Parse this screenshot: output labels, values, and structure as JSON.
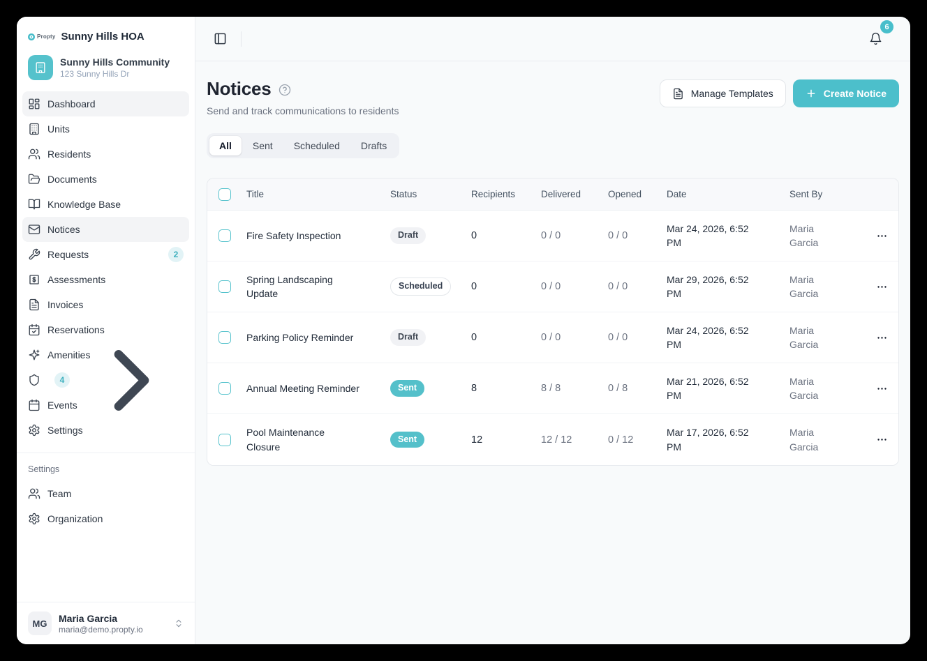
{
  "app": {
    "brand": "Propty",
    "org_name": "Sunny Hills HOA",
    "community": {
      "name": "Sunny Hills Community",
      "address": "123 Sunny Hills Dr"
    },
    "colors": {
      "accent": "#4CBFCB",
      "badge_bg": "#E2F3F6",
      "badge_text": "#3AAFBD"
    }
  },
  "sidebar": {
    "nav": [
      {
        "label": "Dashboard",
        "icon": "dashboard",
        "highlight": true
      },
      {
        "label": "Units",
        "icon": "building"
      },
      {
        "label": "Residents",
        "icon": "users"
      },
      {
        "label": "Documents",
        "icon": "folder-open"
      },
      {
        "label": "Knowledge Base",
        "icon": "book-open"
      },
      {
        "label": "Notices",
        "icon": "mail",
        "active": true
      },
      {
        "label": "Requests",
        "icon": "wrench",
        "badge": "2"
      },
      {
        "label": "Assessments",
        "icon": "dollar-square"
      },
      {
        "label": "Invoices",
        "icon": "file-text"
      },
      {
        "label": "Reservations",
        "icon": "calendar-check"
      },
      {
        "label": "Amenities",
        "icon": "sparkles"
      },
      {
        "label": "Compliance",
        "icon": "shield",
        "badge": "4",
        "chevron": true
      },
      {
        "label": "Events",
        "icon": "calendar"
      },
      {
        "label": "Settings",
        "icon": "gear"
      }
    ],
    "section_label": "Settings",
    "section_items": [
      {
        "label": "Team",
        "icon": "users"
      },
      {
        "label": "Organization",
        "icon": "gear"
      }
    ],
    "user": {
      "initials": "MG",
      "name": "Maria Garcia",
      "email": "maria@demo.propty.io"
    }
  },
  "topbar": {
    "notification_count": "6"
  },
  "page": {
    "title": "Notices",
    "subtitle": "Send and track communications to residents",
    "manage_templates_label": "Manage Templates",
    "create_notice_label": "Create Notice"
  },
  "tabs": [
    {
      "label": "All",
      "active": true
    },
    {
      "label": "Sent"
    },
    {
      "label": "Scheduled"
    },
    {
      "label": "Drafts"
    }
  ],
  "table": {
    "columns": [
      "Title",
      "Status",
      "Recipients",
      "Delivered",
      "Opened",
      "Date",
      "Sent By"
    ],
    "rows": [
      {
        "title": "Fire Safety Inspection",
        "status": "Draft",
        "recipients": "0",
        "delivered": "0 / 0",
        "opened": "0 / 0",
        "date": "Mar 24, 2026, 6:52 PM",
        "sent_by": "Maria Garcia"
      },
      {
        "title": "Spring Landscaping Update",
        "status": "Scheduled",
        "recipients": "0",
        "delivered": "0 / 0",
        "opened": "0 / 0",
        "date": "Mar 29, 2026, 6:52 PM",
        "sent_by": "Maria Garcia"
      },
      {
        "title": "Parking Policy Reminder",
        "status": "Draft",
        "recipients": "0",
        "delivered": "0 / 0",
        "opened": "0 / 0",
        "date": "Mar 24, 2026, 6:52 PM",
        "sent_by": "Maria Garcia"
      },
      {
        "title": "Annual Meeting Reminder",
        "status": "Sent",
        "recipients": "8",
        "delivered": "8 / 8",
        "opened": "0 / 8",
        "date": "Mar 21, 2026, 6:52 PM",
        "sent_by": "Maria Garcia"
      },
      {
        "title": "Pool Maintenance Closure",
        "status": "Sent",
        "recipients": "12",
        "delivered": "12 / 12",
        "opened": "0 / 12",
        "date": "Mar 17, 2026, 6:52 PM",
        "sent_by": "Maria Garcia"
      }
    ]
  }
}
